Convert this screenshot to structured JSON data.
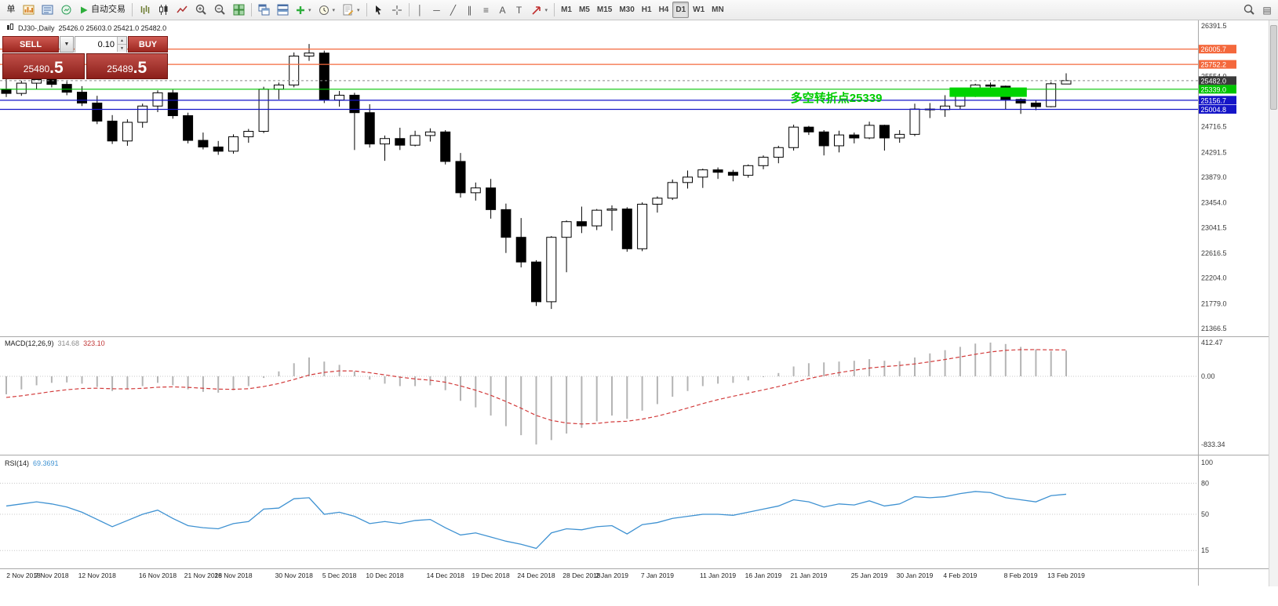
{
  "icons": {
    "caret_down": "▼",
    "spin_up": "▲",
    "spin_down": "▼"
  },
  "toolbar": {
    "items": [
      {
        "n": "new-order-button",
        "l": "单"
      },
      {
        "n": "new-chart-button",
        "svg": "newchart"
      },
      {
        "n": "profiles-button",
        "svg": "profiles"
      },
      {
        "n": "market-watch-button",
        "svg": "market"
      },
      {
        "n": "auto-trading-button",
        "svg": "play",
        "l": "自动交易"
      },
      {
        "sep": true
      },
      {
        "n": "bar-chart-button",
        "svg": "bars"
      },
      {
        "n": "candlestick-button",
        "svg": "candles"
      },
      {
        "n": "line-chart-button",
        "svg": "linechart"
      },
      {
        "n": "zoom-in-button",
        "svg": "zoomin"
      },
      {
        "n": "zoom-out-button",
        "svg": "zoomout"
      },
      {
        "n": "tile-windows-button",
        "svg": "tile"
      },
      {
        "sep": true
      },
      {
        "n": "cascade-windows-button",
        "svg": "cascade"
      },
      {
        "n": "arrange-windows-button",
        "svg": "arrange"
      },
      {
        "n": "add-indicator-button",
        "svg": "plus",
        "caret": true
      },
      {
        "n": "periods-button",
        "svg": "clock",
        "caret": true
      },
      {
        "n": "templates-button",
        "svg": "template",
        "caret": true
      },
      {
        "sep": true
      },
      {
        "n": "cursor-button",
        "svg": "cursor"
      },
      {
        "n": "crosshair-button",
        "svg": "cross"
      },
      {
        "sep": true
      },
      {
        "n": "vertical-line-button",
        "g": "│"
      },
      {
        "n": "horizontal-line-button",
        "g": "─"
      },
      {
        "n": "trend-line-button",
        "g": "╱"
      },
      {
        "n": "channel-button",
        "g": "∥"
      },
      {
        "n": "fibonacci-button",
        "g": "≡"
      },
      {
        "n": "text-button",
        "g": "A"
      },
      {
        "n": "label-button",
        "g": "T"
      },
      {
        "n": "arrows-button",
        "svg": "arrow",
        "caret": true
      },
      {
        "sep": true
      },
      {
        "n": "timeframe-m1-button",
        "l": "M1",
        "tf": true
      },
      {
        "n": "timeframe-m5-button",
        "l": "M5",
        "tf": true
      },
      {
        "n": "timeframe-m15-button",
        "l": "M15",
        "tf": true
      },
      {
        "n": "timeframe-m30-button",
        "l": "M30",
        "tf": true
      },
      {
        "n": "timeframe-h1-button",
        "l": "H1",
        "tf": true
      },
      {
        "n": "timeframe-h4-button",
        "l": "H4",
        "tf": true
      },
      {
        "n": "timeframe-d1-button",
        "l": "D1",
        "tf": true,
        "active": true
      },
      {
        "n": "timeframe-w1-button",
        "l": "W1",
        "tf": true
      },
      {
        "n": "timeframe-mn-button",
        "l": "MN",
        "tf": true
      },
      {
        "spacer": true
      },
      {
        "n": "search-button",
        "svg": "mag"
      },
      {
        "n": "data-window-button",
        "g": "▤"
      }
    ]
  },
  "trade_panel": {
    "sell_label": "SELL",
    "buy_label": "BUY",
    "volume": "0.10",
    "sell_price_main": "25480",
    "sell_price_frac": ".5",
    "buy_price_main": "25489",
    "buy_price_frac": ".5"
  },
  "chart": {
    "title": "DJ30-,Daily",
    "ohlc": "25426.0 25603.0 25421.0 25482.0"
  },
  "chart_data": {
    "type": "candlestick",
    "symbol_period": "DJ30-,Daily",
    "current_ohlc": {
      "open": 25426.0,
      "high": 25603.0,
      "low": 25421.0,
      "close": 25482.0
    },
    "y_axis": {
      "top_price": 26391.5,
      "bottom_price": 21366.5,
      "labels": [
        26391.5,
        25554.0,
        24716.5,
        24291.5,
        23879.0,
        23454.0,
        23041.5,
        22616.5,
        22204.0,
        21779.0,
        21366.5
      ]
    },
    "x_labels": [
      {
        "i": 0,
        "t": "2 Nov 2018"
      },
      {
        "i": 3,
        "t": "7 Nov 2018"
      },
      {
        "i": 6,
        "t": "12 Nov 2018"
      },
      {
        "i": 10,
        "t": "16 Nov 2018"
      },
      {
        "i": 13,
        "t": "21 Nov 2018"
      },
      {
        "i": 15,
        "t": "26 Nov 2018"
      },
      {
        "i": 19,
        "t": "30 Nov 2018"
      },
      {
        "i": 22,
        "t": "5 Dec 2018"
      },
      {
        "i": 25,
        "t": "10 Dec 2018"
      },
      {
        "i": 29,
        "t": "14 Dec 2018"
      },
      {
        "i": 32,
        "t": "19 Dec 2018"
      },
      {
        "i": 35,
        "t": "24 Dec 2018"
      },
      {
        "i": 38,
        "t": "28 Dec 2018"
      },
      {
        "i": 40,
        "t": "2 Jan 2019"
      },
      {
        "i": 43,
        "t": "7 Jan 2019"
      },
      {
        "i": 47,
        "t": "11 Jan 2019"
      },
      {
        "i": 50,
        "t": "16 Jan 2019"
      },
      {
        "i": 53,
        "t": "21 Jan 2019"
      },
      {
        "i": 57,
        "t": "25 Jan 2019"
      },
      {
        "i": 60,
        "t": "30 Jan 2019"
      },
      {
        "i": 63,
        "t": "4 Feb 2019"
      },
      {
        "i": 67,
        "t": "8 Feb 2019"
      },
      {
        "i": 70,
        "t": "13 Feb 2019"
      }
    ],
    "candles": [
      [
        25340,
        25600,
        25210,
        25270
      ],
      [
        25270,
        25480,
        25230,
        25440
      ],
      [
        25440,
        25540,
        25340,
        25500
      ],
      [
        25500,
        25570,
        25370,
        25420
      ],
      [
        25420,
        25470,
        25240,
        25290
      ],
      [
        25290,
        25390,
        25060,
        25110
      ],
      [
        25110,
        25230,
        24760,
        24810
      ],
      [
        24810,
        24910,
        24430,
        24480
      ],
      [
        24480,
        24840,
        24400,
        24790
      ],
      [
        24790,
        25100,
        24700,
        25060
      ],
      [
        25060,
        25320,
        24960,
        25280
      ],
      [
        25280,
        25330,
        24850,
        24900
      ],
      [
        24900,
        24950,
        24440,
        24490
      ],
      [
        24490,
        24620,
        24340,
        24380
      ],
      [
        24380,
        24480,
        24250,
        24310
      ],
      [
        24310,
        24590,
        24270,
        24550
      ],
      [
        24550,
        24680,
        24450,
        24640
      ],
      [
        24640,
        25380,
        24610,
        25340
      ],
      [
        25340,
        25450,
        25170,
        25410
      ],
      [
        25410,
        25950,
        25370,
        25890
      ],
      [
        25890,
        26090,
        25810,
        25940
      ],
      [
        25940,
        25980,
        25110,
        25160
      ],
      [
        25160,
        25310,
        25050,
        25240
      ],
      [
        25240,
        25280,
        24330,
        24950
      ],
      [
        24950,
        25090,
        24370,
        24430
      ],
      [
        24430,
        24570,
        24150,
        24520
      ],
      [
        24520,
        24700,
        24330,
        24410
      ],
      [
        24410,
        24650,
        24390,
        24570
      ],
      [
        24570,
        24690,
        24470,
        24630
      ],
      [
        24630,
        24660,
        24090,
        24140
      ],
      [
        24140,
        24280,
        23540,
        23620
      ],
      [
        23620,
        23790,
        23490,
        23700
      ],
      [
        23700,
        23850,
        23190,
        23340
      ],
      [
        23340,
        23440,
        22620,
        22880
      ],
      [
        22880,
        23200,
        22380,
        22470
      ],
      [
        22470,
        22500,
        21740,
        21810
      ],
      [
        21810,
        22900,
        21690,
        22880
      ],
      [
        22880,
        23160,
        22300,
        23140
      ],
      [
        23140,
        23390,
        22950,
        23070
      ],
      [
        23070,
        23350,
        23000,
        23330
      ],
      [
        23330,
        23410,
        22990,
        23350
      ],
      [
        23350,
        23380,
        22640,
        22690
      ],
      [
        22690,
        23460,
        22650,
        23430
      ],
      [
        23430,
        23560,
        23290,
        23530
      ],
      [
        23530,
        23840,
        23500,
        23790
      ],
      [
        23790,
        23990,
        23690,
        23880
      ],
      [
        23880,
        24020,
        23700,
        24000
      ],
      [
        24000,
        24040,
        23850,
        23960
      ],
      [
        23960,
        24000,
        23810,
        23910
      ],
      [
        23910,
        24090,
        23870,
        24070
      ],
      [
        24070,
        24240,
        24010,
        24210
      ],
      [
        24210,
        24400,
        24110,
        24370
      ],
      [
        24370,
        24750,
        24320,
        24710
      ],
      [
        24710,
        24730,
        24580,
        24630
      ],
      [
        24630,
        24660,
        24240,
        24400
      ],
      [
        24400,
        24650,
        24290,
        24580
      ],
      [
        24580,
        24620,
        24440,
        24530
      ],
      [
        24530,
        24800,
        24510,
        24740
      ],
      [
        24740,
        24750,
        24320,
        24530
      ],
      [
        24530,
        24660,
        24450,
        24590
      ],
      [
        24590,
        25100,
        24560,
        25010
      ],
      [
        25010,
        25110,
        24860,
        25000
      ],
      [
        25000,
        25240,
        24880,
        25060
      ],
      [
        25060,
        25250,
        25010,
        25240
      ],
      [
        25240,
        25430,
        25210,
        25410
      ],
      [
        25410,
        25450,
        25260,
        25390
      ],
      [
        25390,
        25400,
        25000,
        25170
      ],
      [
        25170,
        25190,
        24930,
        25110
      ],
      [
        25110,
        25160,
        24990,
        25050
      ],
      [
        25050,
        25460,
        25040,
        25430
      ],
      [
        25426,
        25603,
        25421,
        25482
      ]
    ],
    "candle_colors": {
      "up": "#ffffff",
      "down": "#000000",
      "wick": "#000000"
    },
    "hlines": [
      {
        "price": 26005.7,
        "label": "26005.7",
        "color": "#f4683c"
      },
      {
        "price": 25752.2,
        "label": "25752.2",
        "color": "#f4683c"
      },
      {
        "price": 25339.0,
        "label": "25339.0",
        "color": "#00c400"
      },
      {
        "price": 25156.7,
        "label": "25156.7",
        "color": "#1515c8"
      },
      {
        "price": 25004.8,
        "label": "25004.8",
        "color": "#1515c8"
      }
    ],
    "bid_line": {
      "price": 25482.0,
      "label": "25482.0",
      "color": "#3a3a3a"
    },
    "rectangle": {
      "from_index": 62.3,
      "to_index": 67.4,
      "top_price": 25368,
      "bottom_price": 25212,
      "color": "#00d400"
    },
    "annotation": {
      "text": "多空转折点25339",
      "color": "#00cc00",
      "x_index": 51.8,
      "price": 25318
    },
    "macd": {
      "label": "MACD(12,26,9)",
      "value_macd": "314.68",
      "value_signal": "323.10",
      "scale_labels": [
        {
          "v": 412.47,
          "t": "412.47"
        },
        {
          "v": 0,
          "t": "0.00"
        },
        {
          "v": -833.34,
          "t": "-833.34"
        }
      ],
      "colors": {
        "histogram": "#b4b4b4",
        "signal": "#d23a3a"
      },
      "histogram": [
        -220,
        -160,
        -110,
        -80,
        -75,
        -90,
        -130,
        -180,
        -160,
        -120,
        -80,
        -110,
        -160,
        -190,
        -200,
        -170,
        -120,
        -20,
        60,
        160,
        230,
        180,
        140,
        60,
        -40,
        -90,
        -120,
        -120,
        -110,
        -170,
        -300,
        -380,
        -480,
        -610,
        -720,
        -833.34,
        -780,
        -700,
        -630,
        -550,
        -480,
        -520,
        -420,
        -340,
        -250,
        -180,
        -120,
        -90,
        -80,
        -50,
        -10,
        40,
        120,
        160,
        170,
        180,
        190,
        210,
        190,
        185,
        230,
        280,
        320,
        360,
        400,
        412.47,
        395,
        360,
        330,
        310,
        314.68
      ],
      "signal": [
        -258.4,
        -238.7,
        -213.0,
        -186.4,
        -164.1,
        -149.3,
        -145.4,
        -152.3,
        -153.9,
        -147.1,
        -133.7,
        -128.9,
        -135.2,
        -146.1,
        -156.9,
        -159.5,
        -151.6,
        -125.3,
        -88.2,
        -38.6,
        15.1,
        48.1,
        66.5,
        65.2,
        44.2,
        17.3,
        -10.2,
        -32.2,
        -47.7,
        -72.2,
        -117.7,
        -170.2,
        -232.1,
        -307.7,
        -390.2,
        -478.8,
        -539.0,
        -571.2,
        -583.0,
        -576.4,
        -557.1,
        -549.7,
        -523.8,
        -487.0,
        -439.6,
        -387.7,
        -334.2,
        -285.4,
        -244.3,
        -205.4,
        -166.3,
        -125.0,
        -76.0,
        -28.8,
        11.0,
        44.8,
        73.8,
        101.0,
        118.8,
        132.0,
        151.6,
        177.3,
        205.8,
        236.6,
        269.3,
        297.9,
        317.3,
        325.8,
        326.6,
        323.3,
        323.1
      ]
    },
    "rsi": {
      "label": "RSI(14)",
      "value": "69.3691",
      "color": "#3f92d2",
      "levels": [
        80,
        50,
        15
      ],
      "scale_labels": [
        {
          "v": 100,
          "t": "100"
        },
        {
          "v": 80,
          "t": "80"
        },
        {
          "v": 50,
          "t": "50"
        },
        {
          "v": 15,
          "t": "15"
        }
      ],
      "values": [
        58,
        60,
        62,
        60,
        57,
        52,
        45,
        38,
        44,
        50,
        54,
        46,
        39,
        37,
        36,
        41,
        43,
        55,
        56,
        65,
        66,
        50,
        52,
        48,
        41,
        43,
        41,
        44,
        45,
        37,
        30,
        32,
        28,
        24,
        21,
        17,
        32,
        36,
        35,
        38,
        39,
        31,
        40,
        42,
        46,
        48,
        50,
        50,
        49,
        52,
        55,
        58,
        64,
        62,
        57,
        60,
        59,
        63,
        58,
        60,
        67,
        66,
        67,
        70,
        72,
        71,
        66,
        64,
        62,
        68,
        69.37
      ]
    }
  }
}
